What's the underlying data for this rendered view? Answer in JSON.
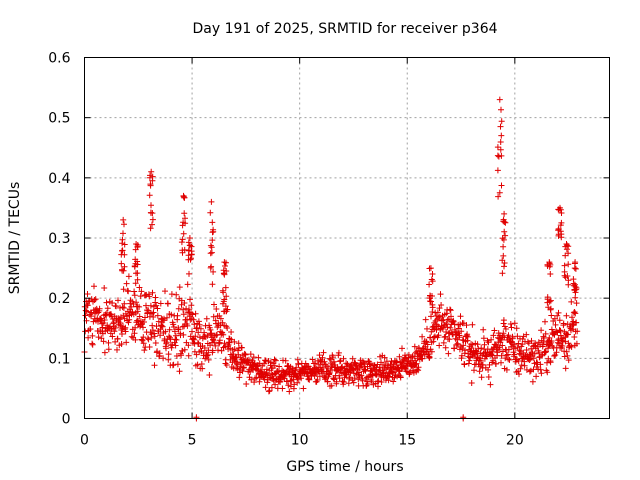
{
  "chart_data": {
    "type": "scatter",
    "title": "Day 191 of 2025, SRMTID for receiver p364",
    "xlabel": "GPS time / hours",
    "ylabel": "SRMTID / TECUs",
    "xlim": [
      0,
      24.4
    ],
    "ylim": [
      0,
      0.6
    ],
    "xticks": [
      0,
      5,
      10,
      15,
      20
    ],
    "yticks": [
      0,
      0.1,
      0.2,
      0.3,
      0.4,
      0.5,
      0.6
    ],
    "ytick_labels": [
      "0",
      "0.1",
      "0.2",
      "0.3",
      "0.4",
      "0.5",
      "0.6"
    ],
    "grid": true,
    "marker": "+",
    "color": "#e00000",
    "envelope": {
      "hours": [
        0,
        0.5,
        1,
        1.5,
        2,
        2.5,
        3,
        3.5,
        4,
        4.5,
        5,
        5.5,
        6,
        6.5,
        7,
        7.5,
        8,
        9,
        10,
        11,
        12,
        13,
        14,
        15,
        15.5,
        16,
        16.5,
        17,
        17.5,
        18,
        18.5,
        19,
        19.5,
        20,
        20.5,
        21,
        21.5,
        22,
        22.5,
        22.9
      ],
      "median": [
        0.17,
        0.17,
        0.16,
        0.16,
        0.18,
        0.17,
        0.18,
        0.14,
        0.14,
        0.16,
        0.15,
        0.11,
        0.14,
        0.16,
        0.1,
        0.09,
        0.08,
        0.07,
        0.08,
        0.08,
        0.08,
        0.08,
        0.08,
        0.09,
        0.1,
        0.13,
        0.16,
        0.14,
        0.13,
        0.11,
        0.1,
        0.11,
        0.13,
        0.11,
        0.11,
        0.1,
        0.12,
        0.14,
        0.14,
        0.16
      ],
      "spread": [
        0.06,
        0.05,
        0.05,
        0.05,
        0.06,
        0.06,
        0.07,
        0.05,
        0.06,
        0.07,
        0.06,
        0.04,
        0.06,
        0.07,
        0.03,
        0.03,
        0.025,
        0.025,
        0.025,
        0.025,
        0.025,
        0.025,
        0.025,
        0.025,
        0.03,
        0.04,
        0.05,
        0.04,
        0.04,
        0.04,
        0.035,
        0.04,
        0.05,
        0.05,
        0.04,
        0.035,
        0.045,
        0.06,
        0.05,
        0.05
      ]
    },
    "spikes": [
      {
        "x": 1.8,
        "ymin": 0.24,
        "ymax": 0.33
      },
      {
        "x": 2.4,
        "ymin": 0.22,
        "ymax": 0.29
      },
      {
        "x": 3.1,
        "ymin": 0.28,
        "ymax": 0.41
      },
      {
        "x": 4.6,
        "ymin": 0.27,
        "ymax": 0.37
      },
      {
        "x": 4.9,
        "ymin": 0.24,
        "ymax": 0.3
      },
      {
        "x": 5.9,
        "ymin": 0.22,
        "ymax": 0.36
      },
      {
        "x": 6.5,
        "ymin": 0.18,
        "ymax": 0.26
      },
      {
        "x": 16.1,
        "ymin": 0.18,
        "ymax": 0.25
      },
      {
        "x": 19.3,
        "ymin": 0.36,
        "ymax": 0.53
      },
      {
        "x": 19.5,
        "ymin": 0.24,
        "ymax": 0.34
      },
      {
        "x": 21.6,
        "ymin": 0.18,
        "ymax": 0.26
      },
      {
        "x": 22.1,
        "ymin": 0.3,
        "ymax": 0.35
      },
      {
        "x": 22.4,
        "ymin": 0.22,
        "ymax": 0.29
      },
      {
        "x": 22.8,
        "ymin": 0.2,
        "ymax": 0.26
      }
    ],
    "outliers": [
      {
        "x": 5.2,
        "y": 0.0
      },
      {
        "x": 17.6,
        "y": 0.0
      }
    ]
  }
}
